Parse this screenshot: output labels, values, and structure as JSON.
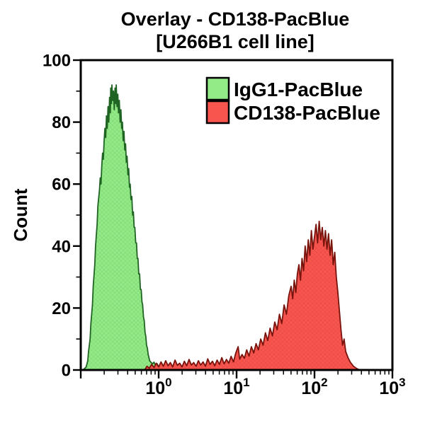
{
  "figure": {
    "title_line1": "Overlay - CD138-PacBlue",
    "title_line2": "[U266B1 cell line]"
  },
  "axes": {
    "y": {
      "label": "Count",
      "min": 0,
      "max": 100,
      "major_ticks": [
        0,
        20,
        40,
        60,
        80,
        100
      ],
      "minor_ticks": [
        10,
        30,
        50,
        70,
        90
      ]
    },
    "x": {
      "scale": "log10",
      "min_exponent": -1,
      "max_exponent": 3,
      "label_base": "10",
      "labeled_exponents": [
        0,
        1,
        2,
        3
      ]
    }
  },
  "legend": {
    "items": [
      {
        "label": "IgG1-PacBlue",
        "fill": "#93EB87",
        "stroke": "#206423"
      },
      {
        "label": "CD138-PacBlue",
        "fill": "#F9554F",
        "stroke": "#7A130C"
      }
    ]
  },
  "chart_data": {
    "type": "area",
    "title": "Overlay - CD138-PacBlue [U266B1 cell line]",
    "ylabel": "Count",
    "x_scale": "log10",
    "x_range_log10": [
      -1,
      3
    ],
    "ylim": [
      0,
      100
    ],
    "legend_position": "top-center-inside",
    "grid": false,
    "series": [
      {
        "name": "IgG1-PacBlue",
        "fill": "#93EB87",
        "stroke": "#206423",
        "peak_log10_x": -0.55,
        "peak_count": 92,
        "points_log10x_count": [
          [
            -0.97,
            0
          ],
          [
            -0.95,
            0.5
          ],
          [
            -0.93,
            1
          ],
          [
            -0.91,
            3
          ],
          [
            -0.9,
            6
          ],
          [
            -0.88,
            10
          ],
          [
            -0.87,
            15
          ],
          [
            -0.85,
            21
          ],
          [
            -0.84,
            27
          ],
          [
            -0.82,
            34
          ],
          [
            -0.81,
            40
          ],
          [
            -0.79,
            47
          ],
          [
            -0.78,
            53
          ],
          [
            -0.76,
            58
          ],
          [
            -0.75,
            62
          ],
          [
            -0.74,
            60
          ],
          [
            -0.73,
            66
          ],
          [
            -0.72,
            70
          ],
          [
            -0.71,
            68
          ],
          [
            -0.7,
            74
          ],
          [
            -0.69,
            78
          ],
          [
            -0.68,
            75
          ],
          [
            -0.67,
            82
          ],
          [
            -0.66,
            78
          ],
          [
            -0.65,
            85
          ],
          [
            -0.64,
            80
          ],
          [
            -0.63,
            88
          ],
          [
            -0.62,
            83
          ],
          [
            -0.615,
            91
          ],
          [
            -0.605,
            86
          ],
          [
            -0.6,
            92
          ],
          [
            -0.59,
            87
          ],
          [
            -0.58,
            90
          ],
          [
            -0.57,
            84
          ],
          [
            -0.56,
            91
          ],
          [
            -0.55,
            86
          ],
          [
            -0.545,
            92
          ],
          [
            -0.535,
            85
          ],
          [
            -0.525,
            89
          ],
          [
            -0.515,
            83
          ],
          [
            -0.505,
            87
          ],
          [
            -0.495,
            80
          ],
          [
            -0.485,
            84
          ],
          [
            -0.475,
            78
          ],
          [
            -0.465,
            80
          ],
          [
            -0.455,
            74
          ],
          [
            -0.445,
            77
          ],
          [
            -0.435,
            71
          ],
          [
            -0.425,
            73
          ],
          [
            -0.415,
            67
          ],
          [
            -0.405,
            69
          ],
          [
            -0.395,
            63
          ],
          [
            -0.385,
            65
          ],
          [
            -0.375,
            59
          ],
          [
            -0.365,
            60
          ],
          [
            -0.355,
            55
          ],
          [
            -0.345,
            56
          ],
          [
            -0.335,
            50
          ],
          [
            -0.325,
            51
          ],
          [
            -0.315,
            46
          ],
          [
            -0.305,
            46
          ],
          [
            -0.295,
            41
          ],
          [
            -0.285,
            41
          ],
          [
            -0.275,
            36
          ],
          [
            -0.265,
            36
          ],
          [
            -0.255,
            31
          ],
          [
            -0.245,
            31
          ],
          [
            -0.235,
            26
          ],
          [
            -0.225,
            26
          ],
          [
            -0.215,
            22
          ],
          [
            -0.205,
            21
          ],
          [
            -0.195,
            17
          ],
          [
            -0.185,
            16
          ],
          [
            -0.175,
            12
          ],
          [
            -0.165,
            11
          ],
          [
            -0.155,
            8
          ],
          [
            -0.145,
            7
          ],
          [
            -0.135,
            5
          ],
          [
            -0.125,
            4
          ],
          [
            -0.115,
            3
          ],
          [
            -0.1,
            2.5
          ],
          [
            -0.08,
            2
          ],
          [
            -0.06,
            2.5
          ],
          [
            -0.04,
            1.5
          ],
          [
            -0.02,
            2
          ],
          [
            0,
            1
          ],
          [
            0.03,
            1.8
          ],
          [
            0.06,
            1
          ],
          [
            0.09,
            1.5
          ],
          [
            0.12,
            0.8
          ],
          [
            0.15,
            1.2
          ],
          [
            0.18,
            0.6
          ],
          [
            0.22,
            1
          ],
          [
            0.26,
            0.5
          ],
          [
            0.3,
            0.8
          ],
          [
            0.34,
            0.3
          ],
          [
            0.38,
            0
          ]
        ]
      },
      {
        "name": "CD138-PacBlue",
        "fill": "#F9554F",
        "stroke": "#7A130C",
        "peak_log10_x": 2.06,
        "peak_count": 48,
        "points_log10x_count": [
          [
            -0.18,
            0
          ],
          [
            -0.15,
            1.2
          ],
          [
            -0.12,
            0.6
          ],
          [
            -0.09,
            1.8
          ],
          [
            -0.06,
            0.8
          ],
          [
            -0.03,
            2.2
          ],
          [
            0,
            1
          ],
          [
            0.03,
            2.6
          ],
          [
            0.06,
            1.2
          ],
          [
            0.09,
            3
          ],
          [
            0.12,
            1.4
          ],
          [
            0.15,
            2.4
          ],
          [
            0.18,
            1
          ],
          [
            0.21,
            3.2
          ],
          [
            0.24,
            1.5
          ],
          [
            0.27,
            2.2
          ],
          [
            0.3,
            1
          ],
          [
            0.33,
            2.8
          ],
          [
            0.36,
            1.4
          ],
          [
            0.39,
            3.4
          ],
          [
            0.42,
            1.6
          ],
          [
            0.45,
            2.4
          ],
          [
            0.48,
            1.2
          ],
          [
            0.51,
            3
          ],
          [
            0.54,
            1.6
          ],
          [
            0.57,
            2.6
          ],
          [
            0.6,
            1.2
          ],
          [
            0.63,
            3.6
          ],
          [
            0.66,
            1.8
          ],
          [
            0.69,
            2.8
          ],
          [
            0.72,
            1.4
          ],
          [
            0.75,
            3.2
          ],
          [
            0.78,
            1.8
          ],
          [
            0.81,
            4
          ],
          [
            0.84,
            2
          ],
          [
            0.87,
            3.4
          ],
          [
            0.9,
            2.2
          ],
          [
            0.93,
            4.4
          ],
          [
            0.96,
            2.6
          ],
          [
            0.99,
            5.5
          ],
          [
            1.02,
            7.5
          ],
          [
            1.04,
            3.5
          ],
          [
            1.07,
            5
          ],
          [
            1.1,
            3.8
          ],
          [
            1.13,
            6.5
          ],
          [
            1.16,
            4.5
          ],
          [
            1.19,
            7.5
          ],
          [
            1.22,
            5.5
          ],
          [
            1.25,
            8.5
          ],
          [
            1.28,
            6.5
          ],
          [
            1.31,
            10
          ],
          [
            1.34,
            8
          ],
          [
            1.37,
            12
          ],
          [
            1.4,
            9.5
          ],
          [
            1.43,
            13.5
          ],
          [
            1.46,
            11
          ],
          [
            1.49,
            15.5
          ],
          [
            1.52,
            13
          ],
          [
            1.55,
            18
          ],
          [
            1.58,
            15
          ],
          [
            1.61,
            21
          ],
          [
            1.64,
            18
          ],
          [
            1.67,
            24
          ],
          [
            1.7,
            27
          ],
          [
            1.72,
            23
          ],
          [
            1.74,
            29
          ],
          [
            1.76,
            25
          ],
          [
            1.78,
            31
          ],
          [
            1.8,
            34
          ],
          [
            1.82,
            29
          ],
          [
            1.84,
            36
          ],
          [
            1.86,
            32
          ],
          [
            1.88,
            40
          ],
          [
            1.9,
            35
          ],
          [
            1.92,
            42
          ],
          [
            1.94,
            37
          ],
          [
            1.96,
            45
          ],
          [
            1.98,
            39
          ],
          [
            2,
            43
          ],
          [
            2.02,
            47
          ],
          [
            2.04,
            41
          ],
          [
            2.06,
            48
          ],
          [
            2.08,
            42
          ],
          [
            2.1,
            46
          ],
          [
            2.12,
            40
          ],
          [
            2.14,
            45
          ],
          [
            2.16,
            39
          ],
          [
            2.18,
            44
          ],
          [
            2.2,
            37
          ],
          [
            2.22,
            42
          ],
          [
            2.24,
            34
          ],
          [
            2.26,
            38
          ],
          [
            2.28,
            30
          ],
          [
            2.3,
            25
          ],
          [
            2.32,
            19
          ],
          [
            2.34,
            13
          ],
          [
            2.36,
            8
          ],
          [
            2.38,
            10
          ],
          [
            2.4,
            6
          ],
          [
            2.43,
            4
          ],
          [
            2.46,
            2.5
          ],
          [
            2.5,
            1.2
          ],
          [
            2.54,
            0.5
          ],
          [
            2.58,
            0
          ]
        ]
      }
    ]
  }
}
